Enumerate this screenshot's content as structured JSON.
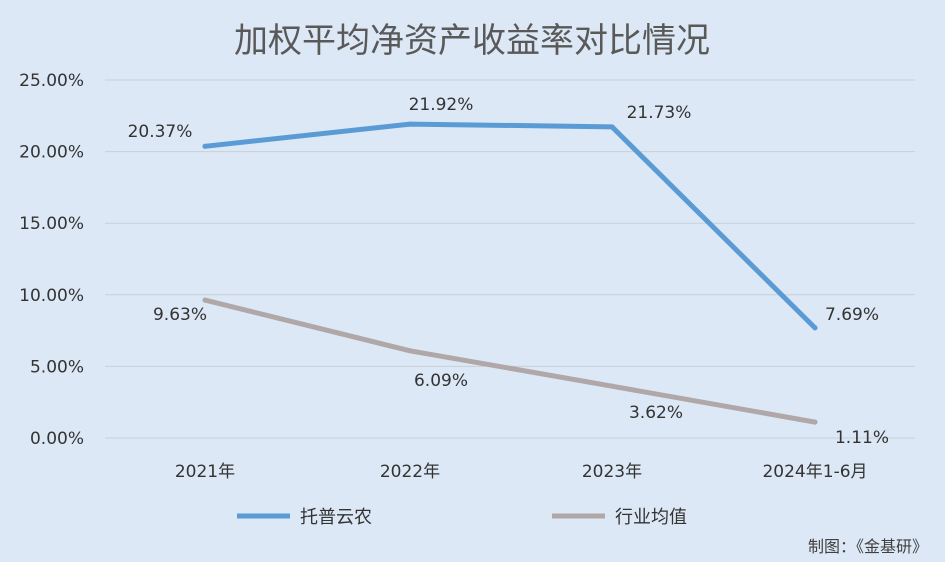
{
  "chart_data": {
    "type": "line",
    "title": "加权平均净资产收益率对比情况",
    "categories": [
      "2021年",
      "2022年",
      "2023年",
      "2024年1-6月"
    ],
    "series": [
      {
        "name": "托普云农",
        "values": [
          20.37,
          21.92,
          21.73,
          7.69
        ],
        "labels": [
          "20.37%",
          "21.92%",
          "21.73%",
          "7.69%"
        ],
        "color": "#5b9bd5"
      },
      {
        "name": "行业均值",
        "values": [
          9.63,
          6.09,
          3.62,
          1.11
        ],
        "labels": [
          "9.63%",
          "6.09%",
          "3.62%",
          "1.11%"
        ],
        "color": "#b0a8a8"
      }
    ],
    "ylim": [
      0,
      25
    ],
    "yticks": [
      0,
      5,
      10,
      15,
      20,
      25
    ],
    "ytick_labels": [
      "0.00%",
      "5.00%",
      "10.00%",
      "15.00%",
      "20.00%",
      "25.00%"
    ],
    "grid": true,
    "legend": "bottom",
    "credit": "制图：《金基研》"
  }
}
